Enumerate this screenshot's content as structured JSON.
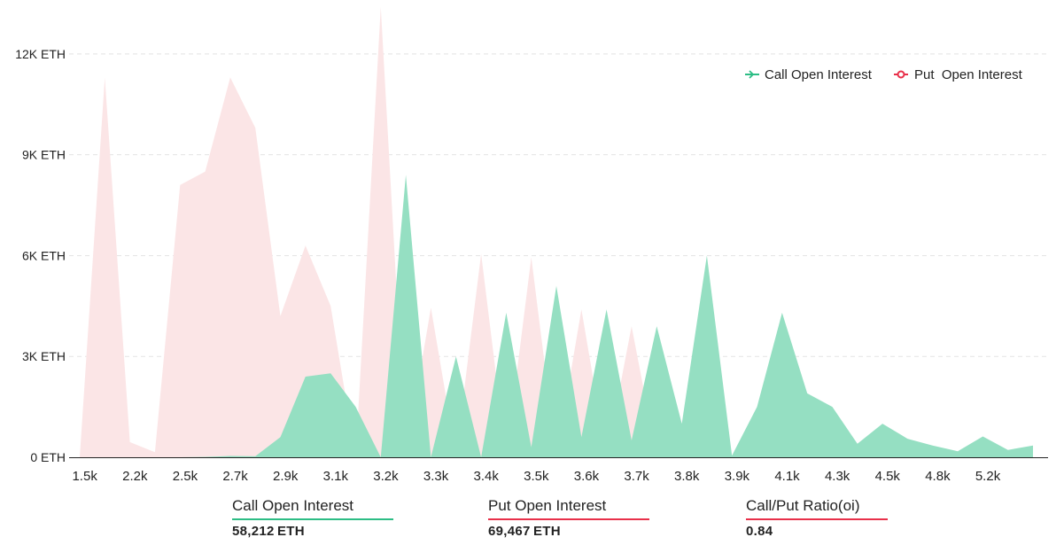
{
  "chart_data": {
    "type": "area",
    "unit": "ETH",
    "y_ticks": [
      "0 ETH",
      "3K ETH",
      "6K ETH",
      "9K ETH",
      "12K ETH"
    ],
    "y_tick_values": [
      0,
      3000,
      6000,
      9000,
      12000
    ],
    "ylim": [
      0,
      13500
    ],
    "x_tick_labels": [
      "1.5k",
      "2.2k",
      "2.5k",
      "2.7k",
      "2.9k",
      "3.1k",
      "3.2k",
      "3.3k",
      "3.4k",
      "3.5k",
      "3.6k",
      "3.7k",
      "3.8k",
      "3.9k",
      "4.1k",
      "4.3k",
      "4.5k",
      "4.8k",
      "5.2k"
    ],
    "grid": true,
    "legend_position": "top-right",
    "series": [
      {
        "name": "Call Open Interest",
        "color": "#2dbd85",
        "fill": "#95dfc2",
        "points": [
          [
            0,
            0
          ],
          [
            0.5,
            0
          ],
          [
            1,
            0
          ],
          [
            1.5,
            0
          ],
          [
            2,
            0
          ],
          [
            2.5,
            10
          ],
          [
            3,
            40
          ],
          [
            3.5,
            30
          ],
          [
            4,
            600
          ],
          [
            4.5,
            2400
          ],
          [
            5,
            2500
          ],
          [
            5.5,
            1500
          ],
          [
            6,
            0
          ],
          [
            6.5,
            8400
          ],
          [
            7,
            0
          ],
          [
            7.5,
            3000
          ],
          [
            8,
            0
          ],
          [
            8.5,
            4300
          ],
          [
            9,
            300
          ],
          [
            9.5,
            5100
          ],
          [
            10,
            600
          ],
          [
            10.5,
            4400
          ],
          [
            11,
            500
          ],
          [
            11.5,
            3900
          ],
          [
            12,
            1000
          ],
          [
            12.5,
            6000
          ],
          [
            13,
            50
          ],
          [
            13.5,
            1500
          ],
          [
            14,
            4300
          ],
          [
            14.5,
            1900
          ],
          [
            15,
            1500
          ],
          [
            15.5,
            400
          ],
          [
            16,
            1000
          ],
          [
            16.5,
            550
          ],
          [
            17,
            350
          ],
          [
            17.5,
            180
          ],
          [
            18,
            620
          ],
          [
            18.5,
            220
          ],
          [
            19,
            350
          ]
        ]
      },
      {
        "name": "Put Open Interest",
        "color": "#e8304a",
        "fill": "#fbe5e6",
        "points": [
          [
            0,
            0
          ],
          [
            0.5,
            11300
          ],
          [
            1,
            450
          ],
          [
            1.5,
            150
          ],
          [
            2,
            8100
          ],
          [
            2.5,
            8500
          ],
          [
            3,
            11300
          ],
          [
            3.5,
            9800
          ],
          [
            4,
            4200
          ],
          [
            4.5,
            6300
          ],
          [
            5,
            4500
          ],
          [
            5.5,
            0
          ],
          [
            6,
            13400
          ],
          [
            6.5,
            50
          ],
          [
            7,
            4450
          ],
          [
            7.5,
            50
          ],
          [
            8,
            6050
          ],
          [
            8.5,
            0
          ],
          [
            9,
            5950
          ],
          [
            9.5,
            0
          ],
          [
            10,
            4400
          ],
          [
            10.5,
            0
          ],
          [
            11,
            3900
          ],
          [
            11.5,
            0
          ],
          [
            12,
            0
          ],
          [
            12.5,
            0
          ],
          [
            13,
            0
          ],
          [
            13.5,
            0
          ],
          [
            14,
            0
          ],
          [
            14.5,
            0
          ],
          [
            15,
            0
          ],
          [
            15.5,
            0
          ],
          [
            16,
            0
          ],
          [
            16.5,
            0
          ],
          [
            17,
            0
          ],
          [
            17.5,
            0
          ],
          [
            18,
            0
          ],
          [
            18.5,
            0
          ],
          [
            19,
            0
          ]
        ]
      }
    ]
  },
  "stats": {
    "call": {
      "label": "Call Open Interest",
      "value": "58,212 ETH",
      "color": "#2dbd85"
    },
    "put": {
      "label": "Put Open Interest",
      "value": "69,467 ETH",
      "color": "#e8304a"
    },
    "ratio": {
      "label": "Call/Put Ratio(oi)",
      "value": "0.84",
      "color": "#e8304a"
    }
  },
  "legend": {
    "call_label": "Call Open Interest",
    "put_label": "Put  Open Interest"
  }
}
